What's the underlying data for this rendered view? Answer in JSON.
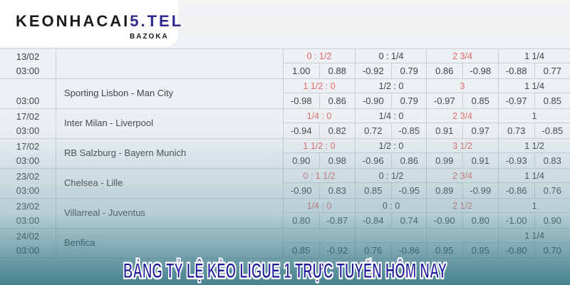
{
  "logo": {
    "main": "KEONHACAI",
    "accent": "5.TEL",
    "sub": "BAZOKA"
  },
  "title": "BẢNG TỶ LỆ KÈO LIGUE 1 TRỰC TUYẾN HÔM NAY",
  "colors": {
    "handicap_red": "#e26060",
    "title": "#1d1a9c",
    "teal": "#2e7383"
  },
  "matches": [
    {
      "date": "13/02",
      "time": "03:00",
      "teams": "",
      "hc": [
        "0 : 1/2",
        "0 : 1/4",
        "2 3/4",
        "1 1/4"
      ],
      "odds": [
        "1.00",
        "0.88",
        "-0.92",
        "0.79",
        "0.86",
        "-0.98",
        "-0.88",
        "0.77"
      ]
    },
    {
      "date": "",
      "time": "03:00",
      "teams": "Sporting Lisbon - Man City",
      "hc": [
        "1 1/2 : 0",
        "1/2 : 0",
        "3",
        "1 1/4"
      ],
      "odds": [
        "-0.98",
        "0.86",
        "-0.90",
        "0.79",
        "-0.97",
        "0.85",
        "-0.97",
        "0.85"
      ]
    },
    {
      "date": "17/02",
      "time": "03:00",
      "teams": "Inter Milan - Liverpool",
      "hc": [
        "1/4 : 0",
        "1/4 : 0",
        "2 3/4",
        "1"
      ],
      "odds": [
        "-0.94",
        "0.82",
        "0.72",
        "-0.85",
        "0.91",
        "0.97",
        "0.73",
        "-0.85"
      ]
    },
    {
      "date": "17/02",
      "time": "03:00",
      "teams": "RB Salzburg - Bayern Munich",
      "hc": [
        "1 1/2 : 0",
        "1/2 : 0",
        "3 1/2",
        "1 1/2"
      ],
      "odds": [
        "0.90",
        "0.98",
        "-0.96",
        "0.86",
        "0.99",
        "0.91",
        "-0.93",
        "0.83"
      ]
    },
    {
      "date": "23/02",
      "time": "03:00",
      "teams": "Chelsea - Lille",
      "hc": [
        "0 : 1 1/2",
        "0 : 1/2",
        "2 3/4",
        "1 1/4"
      ],
      "odds": [
        "-0.90",
        "0.83",
        "0.85",
        "-0.95",
        "0.89",
        "-0.99",
        "-0.86",
        "0.76"
      ]
    },
    {
      "date": "23/02",
      "time": "03:00",
      "teams": "Villarreal - Juventus",
      "hc": [
        "1/4 : 0",
        "0 : 0",
        "2 1/2",
        "1"
      ],
      "odds": [
        "0.80",
        "-0.87",
        "-0.84",
        "0.74",
        "-0.90",
        "0.80",
        "-1.00",
        "0.90"
      ]
    },
    {
      "date": "24/02",
      "time": "03:00",
      "teams": "Benfica",
      "hc": [
        "",
        "",
        "",
        "1 1/4"
      ],
      "odds": [
        "0.85",
        "-0.92",
        "0.76",
        "-0.86",
        "0.95",
        "0.95",
        "-0.80",
        "0.70"
      ]
    }
  ]
}
